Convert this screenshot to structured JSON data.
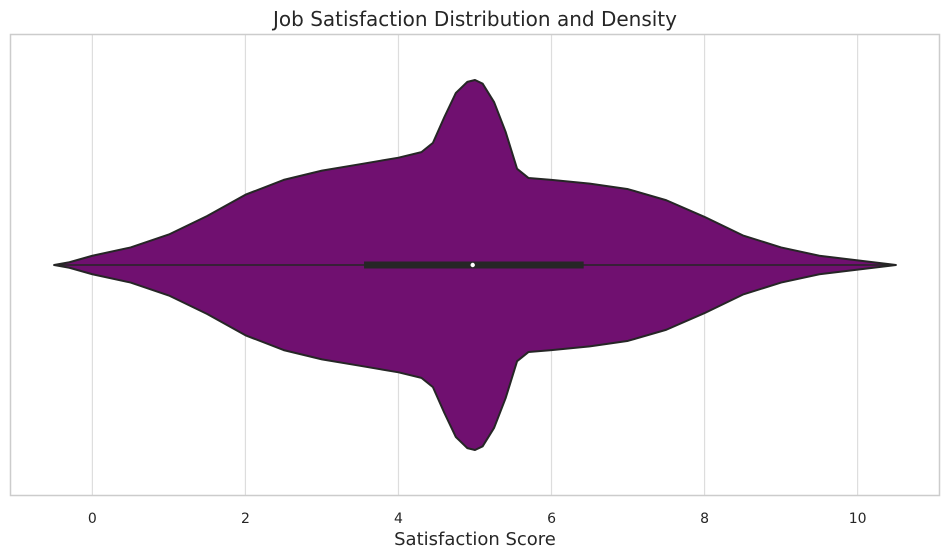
{
  "chart_data": {
    "type": "violin",
    "title": "Job Satisfaction Distribution and Density",
    "xlabel": "Satisfaction Score",
    "ylabel": "",
    "xlim": [
      -1.07,
      11.07
    ],
    "xticks": [
      0,
      2,
      4,
      6,
      8,
      10
    ],
    "grid": "vertical",
    "legend": "none",
    "colors": {
      "violin_fill": "#701070",
      "outline": "#262626",
      "grid": "#dddddd",
      "frame": "#cccccc",
      "median": "#ffffff"
    },
    "density": {
      "x": [
        -0.5,
        -0.3,
        0.0,
        0.5,
        1.0,
        1.5,
        2.0,
        2.5,
        3.0,
        3.5,
        4.0,
        4.3,
        4.45,
        4.6,
        4.75,
        4.9,
        5.0,
        5.1,
        5.25,
        5.4,
        5.55,
        5.7,
        6.0,
        6.5,
        7.0,
        7.5,
        8.0,
        8.5,
        9.0,
        9.5,
        10.0,
        10.3,
        10.5
      ],
      "half_width": [
        0.0,
        0.015,
        0.05,
        0.095,
        0.165,
        0.265,
        0.38,
        0.46,
        0.51,
        0.545,
        0.58,
        0.61,
        0.66,
        0.8,
        0.93,
        0.99,
        1.0,
        0.98,
        0.88,
        0.72,
        0.52,
        0.47,
        0.46,
        0.44,
        0.41,
        0.35,
        0.26,
        0.16,
        0.095,
        0.05,
        0.025,
        0.01,
        0.0
      ]
    },
    "box": {
      "q1": 3.55,
      "median": 4.97,
      "q3": 6.42,
      "whisker_low": -0.5,
      "whisker_high": 10.5
    }
  }
}
